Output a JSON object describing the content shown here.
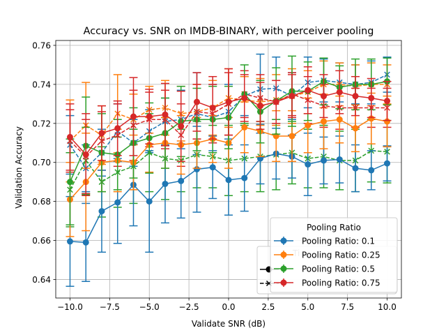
{
  "chart_data": {
    "type": "line",
    "title": "Accuracy vs. SNR on IMDB-BINARY, with perceiver pooling",
    "xlabel": "Validate SNR (dB)",
    "ylabel": "Validation Accuracy",
    "xlim": [
      -10.9,
      10.9
    ],
    "ylim": [
      0.6305,
      0.7625
    ],
    "xticks": [
      -10.0,
      -7.5,
      -5.0,
      -2.5,
      0.0,
      2.5,
      5.0,
      7.5,
      10.0
    ],
    "xtick_labels": [
      "−10.0",
      "−7.5",
      "−5.0",
      "−2.5",
      "0.0",
      "2.5",
      "5.0",
      "7.5",
      "10.0"
    ],
    "yticks": [
      0.64,
      0.66,
      0.68,
      0.7,
      0.72,
      0.74,
      0.76
    ],
    "ytick_labels": [
      "0.64",
      "0.66",
      "0.68",
      "0.70",
      "0.72",
      "0.74",
      "0.76"
    ],
    "grid": true,
    "x": [
      -10,
      -9,
      -8,
      -7,
      -6,
      -5,
      -4,
      -3,
      -2,
      -1,
      0,
      1,
      2,
      3,
      4,
      5,
      6,
      7,
      8,
      9,
      10
    ],
    "series": [
      {
        "name": "Pooling Ratio: 0.1",
        "color": "#1f77b4",
        "y": [
          0.6595,
          0.659,
          0.675,
          0.6795,
          0.6885,
          0.68,
          0.689,
          0.6905,
          0.6965,
          0.6975,
          0.691,
          0.692,
          0.702,
          0.7045,
          0.703,
          0.699,
          0.701,
          0.7015,
          0.697,
          0.696,
          0.6995
        ],
        "err": [
          0.023,
          0.02,
          0.021,
          0.021,
          0.021,
          0.026,
          0.02,
          0.019,
          0.022,
          0.016,
          0.018,
          0.017,
          0.013,
          0.013,
          0.011,
          0.016,
          0.012,
          0.012,
          0.012,
          0.01,
          0.009
        ],
        "dashed_y": [
          0.709,
          0.697,
          0.705,
          0.716,
          0.71,
          0.716,
          0.721,
          0.722,
          0.725,
          0.723,
          0.726,
          0.734,
          0.7375,
          0.738,
          0.734,
          0.741,
          0.742,
          0.741,
          0.74,
          0.741,
          0.745
        ],
        "dashed_err": [
          0.015,
          0.012,
          0.012,
          0.014,
          0.012,
          0.011,
          0.012,
          0.015,
          0.021,
          0.017,
          0.014,
          0.01,
          0.018,
          0.016,
          0.012,
          0.013,
          0.011,
          0.01,
          0.01,
          0.011,
          0.009
        ]
      },
      {
        "name": "Pooling Ratio: 0.25",
        "color": "#ff7f0e",
        "y": [
          0.681,
          0.69,
          0.7,
          0.701,
          0.7,
          0.709,
          0.71,
          0.709,
          0.71,
          0.712,
          0.71,
          0.718,
          0.716,
          0.7135,
          0.7135,
          0.719,
          0.721,
          0.722,
          0.7175,
          0.7225,
          0.721
        ],
        "err": [
          0.019,
          0.025,
          0.015,
          0.016,
          0.014,
          0.014,
          0.013,
          0.015,
          0.013,
          0.012,
          0.013,
          0.013,
          0.013,
          0.013,
          0.013,
          0.014,
          0.014,
          0.012,
          0.012,
          0.013,
          0.013
        ],
        "dashed_y": [
          0.711,
          0.719,
          0.714,
          0.725,
          0.722,
          0.727,
          0.728,
          0.725,
          0.726,
          0.728,
          0.733,
          0.732,
          0.731,
          0.732,
          0.734,
          0.736,
          0.74,
          0.74,
          0.739,
          0.74,
          0.74
        ],
        "dashed_err": [
          0.021,
          0.022,
          0.015,
          0.02,
          0.013,
          0.012,
          0.014,
          0.014,
          0.014,
          0.014,
          0.015,
          0.012,
          0.012,
          0.013,
          0.014,
          0.011,
          0.012,
          0.011,
          0.011,
          0.011,
          0.01
        ]
      },
      {
        "name": "Pooling Ratio: 0.5",
        "color": "#2ca02c",
        "y": [
          0.69,
          0.7085,
          0.705,
          0.704,
          0.71,
          0.7125,
          0.715,
          0.721,
          0.722,
          0.722,
          0.723,
          0.735,
          0.726,
          0.7315,
          0.7365,
          0.7365,
          0.7415,
          0.7385,
          0.74,
          0.74,
          0.7415
        ],
        "err": [
          0.022,
          0.025,
          0.02,
          0.018,
          0.018,
          0.018,
          0.018,
          0.018,
          0.016,
          0.017,
          0.016,
          0.015,
          0.016,
          0.017,
          0.018,
          0.015,
          0.012,
          0.011,
          0.013,
          0.013,
          0.012
        ],
        "dashed_y": [
          0.686,
          0.701,
          0.69,
          0.695,
          0.698,
          0.705,
          0.702,
          0.701,
          0.704,
          0.703,
          0.701,
          0.702,
          0.703,
          0.704,
          0.705,
          0.702,
          0.703,
          0.701,
          0.701,
          0.706,
          0.7055
        ],
        "dashed_err": [
          0.019,
          0.017,
          0.018,
          0.018,
          0.019,
          0.02,
          0.021,
          0.016,
          0.017,
          0.016,
          0.018,
          0.017,
          0.018,
          0.018,
          0.016,
          0.015,
          0.016,
          0.015,
          0.016,
          0.016,
          0.016
        ]
      },
      {
        "name": "Pooling Ratio: 0.75",
        "color": "#d62728",
        "y": [
          0.713,
          0.704,
          0.715,
          0.7175,
          0.7235,
          0.7235,
          0.7245,
          0.7185,
          0.731,
          0.728,
          0.731,
          0.733,
          0.729,
          0.731,
          0.734,
          0.737,
          0.734,
          0.736,
          0.734,
          0.733,
          0.7315
        ],
        "err": [
          0.017,
          0.021,
          0.014,
          0.014,
          0.02,
          0.014,
          0.016,
          0.018,
          0.015,
          0.016,
          0.017,
          0.012,
          0.012,
          0.011,
          0.011,
          0.012,
          0.011,
          0.011,
          0.01,
          0.01,
          0.01
        ],
        "dashed_y": [
          0.711,
          0.703,
          0.711,
          0.714,
          0.719,
          0.722,
          0.722,
          0.714,
          0.726,
          0.725,
          0.73,
          0.735,
          0.733,
          0.731,
          0.735,
          0.732,
          0.729,
          0.728,
          0.728,
          0.728,
          0.728
        ],
        "dashed_err": [
          0.016,
          0.019,
          0.015,
          0.016,
          0.018,
          0.014,
          0.015,
          0.016,
          0.014,
          0.015,
          0.016,
          0.012,
          0.012,
          0.011,
          0.011,
          0.012,
          0.011,
          0.011,
          0.01,
          0.01,
          0.01
        ]
      }
    ],
    "legend": {
      "placement": "lower-right",
      "title": "Pooling Ratio",
      "entries": [
        "Pooling Ratio: 0.1",
        "Pooling Ratio: 0.25",
        "Pooling Ratio: 0.5",
        "Pooling Ratio: 0.75"
      ],
      "hidden_entries": [
        "Ti",
        "...e",
        "...e"
      ]
    }
  }
}
